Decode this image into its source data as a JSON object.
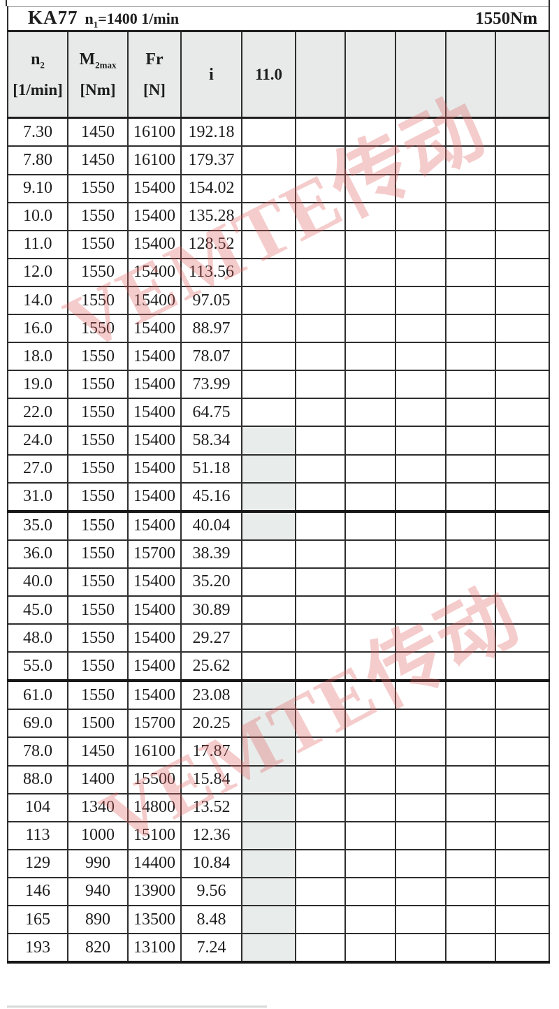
{
  "title": {
    "model": "KA77",
    "speed_sym": "n",
    "speed_sub": "1",
    "speed_rest": "=1400 1/min",
    "torque": "1550Nm"
  },
  "header": {
    "col_n2": {
      "sym": "n",
      "sub": "2",
      "unit": "[1/min]"
    },
    "col_m2": {
      "sym": "M",
      "sub": "2max",
      "unit": "[Nm]"
    },
    "col_fr": {
      "sym": "Fr",
      "unit": "[N]"
    },
    "col_i": {
      "sym": "i"
    },
    "col_ratio": {
      "value": "11.0"
    }
  },
  "watermark": {
    "text": "VEMTE传动"
  },
  "colors": {
    "header_bg": "#e8eaea",
    "shaded_cell_bg": "#e8eceb",
    "grid_line": "#2e2e2e",
    "watermark_pink": "rgba(225,95,95,0.32)"
  },
  "table": {
    "columns": [
      "n2 [1/min]",
      "M2max [Nm]",
      "Fr [N]",
      "i",
      "11.0",
      "",
      "",
      "",
      "",
      ""
    ],
    "rows": [
      {
        "n2": "7.30",
        "m2max": "1450",
        "fr": "16100",
        "i": "192.18",
        "shaded": false,
        "section": false
      },
      {
        "n2": "7.80",
        "m2max": "1450",
        "fr": "16100",
        "i": "179.37",
        "shaded": false,
        "section": false
      },
      {
        "n2": "9.10",
        "m2max": "1550",
        "fr": "15400",
        "i": "154.02",
        "shaded": false,
        "section": false
      },
      {
        "n2": "10.0",
        "m2max": "1550",
        "fr": "15400",
        "i": "135.28",
        "shaded": false,
        "section": false
      },
      {
        "n2": "11.0",
        "m2max": "1550",
        "fr": "15400",
        "i": "128.52",
        "shaded": false,
        "section": false
      },
      {
        "n2": "12.0",
        "m2max": "1550",
        "fr": "15400",
        "i": "113.56",
        "shaded": false,
        "section": false
      },
      {
        "n2": "14.0",
        "m2max": "1550",
        "fr": "15400",
        "i": "97.05",
        "shaded": false,
        "section": false
      },
      {
        "n2": "16.0",
        "m2max": "1550",
        "fr": "15400",
        "i": "88.97",
        "shaded": false,
        "section": false
      },
      {
        "n2": "18.0",
        "m2max": "1550",
        "fr": "15400",
        "i": "78.07",
        "shaded": false,
        "section": false
      },
      {
        "n2": "19.0",
        "m2max": "1550",
        "fr": "15400",
        "i": "73.99",
        "shaded": false,
        "section": false
      },
      {
        "n2": "22.0",
        "m2max": "1550",
        "fr": "15400",
        "i": "64.75",
        "shaded": false,
        "section": false
      },
      {
        "n2": "24.0",
        "m2max": "1550",
        "fr": "15400",
        "i": "58.34",
        "shaded": true,
        "section": false
      },
      {
        "n2": "27.0",
        "m2max": "1550",
        "fr": "15400",
        "i": "51.18",
        "shaded": true,
        "section": false
      },
      {
        "n2": "31.0",
        "m2max": "1550",
        "fr": "15400",
        "i": "45.16",
        "shaded": true,
        "section": false
      },
      {
        "n2": "35.0",
        "m2max": "1550",
        "fr": "15400",
        "i": "40.04",
        "shaded": true,
        "section": true
      },
      {
        "n2": "36.0",
        "m2max": "1550",
        "fr": "15700",
        "i": "38.39",
        "shaded": false,
        "section": false
      },
      {
        "n2": "40.0",
        "m2max": "1550",
        "fr": "15400",
        "i": "35.20",
        "shaded": false,
        "section": false
      },
      {
        "n2": "45.0",
        "m2max": "1550",
        "fr": "15400",
        "i": "30.89",
        "shaded": false,
        "section": false
      },
      {
        "n2": "48.0",
        "m2max": "1550",
        "fr": "15400",
        "i": "29.27",
        "shaded": false,
        "section": false
      },
      {
        "n2": "55.0",
        "m2max": "1550",
        "fr": "15400",
        "i": "25.62",
        "shaded": false,
        "section": false
      },
      {
        "n2": "61.0",
        "m2max": "1550",
        "fr": "15400",
        "i": "23.08",
        "shaded": true,
        "section": true
      },
      {
        "n2": "69.0",
        "m2max": "1500",
        "fr": "15700",
        "i": "20.25",
        "shaded": true,
        "section": false
      },
      {
        "n2": "78.0",
        "m2max": "1450",
        "fr": "16100",
        "i": "17.87",
        "shaded": true,
        "section": false
      },
      {
        "n2": "88.0",
        "m2max": "1400",
        "fr": "15500",
        "i": "15.84",
        "shaded": true,
        "section": false
      },
      {
        "n2": "104",
        "m2max": "1340",
        "fr": "14800",
        "i": "13.52",
        "shaded": true,
        "section": false
      },
      {
        "n2": "113",
        "m2max": "1000",
        "fr": "15100",
        "i": "12.36",
        "shaded": true,
        "section": false
      },
      {
        "n2": "129",
        "m2max": "990",
        "fr": "14400",
        "i": "10.84",
        "shaded": true,
        "section": false
      },
      {
        "n2": "146",
        "m2max": "940",
        "fr": "13900",
        "i": "9.56",
        "shaded": true,
        "section": false
      },
      {
        "n2": "165",
        "m2max": "890",
        "fr": "13500",
        "i": "8.48",
        "shaded": true,
        "section": false
      },
      {
        "n2": "193",
        "m2max": "820",
        "fr": "13100",
        "i": "7.24",
        "shaded": true,
        "section": false
      }
    ]
  }
}
